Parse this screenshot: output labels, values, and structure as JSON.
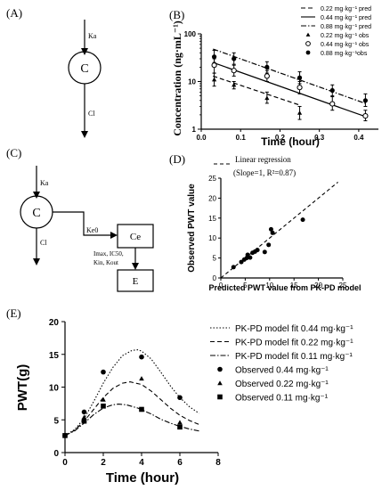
{
  "panels": {
    "A": {
      "label": "(A)",
      "compartment": "C",
      "ka": "Ka",
      "cl": "Cl"
    },
    "C": {
      "label": "(C)",
      "compartment": "C",
      "ka": "Ka",
      "cl": "Cl",
      "ke0": "Ke0",
      "effect_compartment": "Ce",
      "effect": "E",
      "params_line1": "Imax, IC50,",
      "params_line2": "Kin, Kout"
    }
  },
  "chart_data": [
    {
      "panel": "(B)",
      "type": "line",
      "ylabel": "Concentration (ng·mL⁻¹)",
      "xlabel": "Time (hour)",
      "yscale": "log",
      "ylim": [
        1,
        100
      ],
      "xlim": [
        0,
        0.45
      ],
      "x_ticks": [
        "0.0",
        "0.1",
        "0.2",
        "0.3",
        "0.4"
      ],
      "x_tick_values": [
        0,
        0.1,
        0.2,
        0.3,
        0.4
      ],
      "y_ticks": [
        "1",
        "10",
        "100"
      ],
      "y_tick_values": [
        1,
        10,
        100
      ],
      "legend_position": "top-right",
      "pred_series": [
        {
          "name": "0.22 mg·kg⁻¹ pred",
          "style": "dashed",
          "x": [
            0.03,
            0.25
          ],
          "y": [
            13,
            3.2
          ]
        },
        {
          "name": "0.44 mg·kg⁻¹ pred",
          "style": "solid",
          "x": [
            0.03,
            0.42
          ],
          "y": [
            25,
            1.8
          ]
        },
        {
          "name": "0.88 mg·kg⁻¹ pred",
          "style": "dashdot",
          "x": [
            0.03,
            0.42
          ],
          "y": [
            48,
            3.4
          ]
        }
      ],
      "obs_series": [
        {
          "name": "0.22 mg·kg⁻¹ obs",
          "marker": "triangle",
          "x": [
            0.033,
            0.083,
            0.167,
            0.25
          ],
          "y": [
            11,
            8.5,
            4.5,
            2.2
          ],
          "err": [
            [
              8,
              15
            ],
            [
              7,
              10
            ],
            [
              3.5,
              6
            ],
            [
              1.6,
              3
            ]
          ]
        },
        {
          "name": "0.44 mg·kg⁻¹ obs",
          "marker": "open-circle",
          "x": [
            0.033,
            0.083,
            0.167,
            0.25,
            0.333,
            0.417
          ],
          "y": [
            22,
            17,
            13,
            7.5,
            3.4,
            1.9
          ],
          "err": [
            [
              15,
              30
            ],
            [
              13,
              22
            ],
            [
              10,
              17
            ],
            [
              5.5,
              10
            ],
            [
              2.5,
              4.8
            ],
            [
              1.5,
              2.5
            ]
          ]
        },
        {
          "name": "0.88 mg·kg⁻¹obs",
          "marker": "filled-circle",
          "x": [
            0.033,
            0.083,
            0.167,
            0.25,
            0.333,
            0.417
          ],
          "y": [
            33,
            30,
            20,
            12,
            6.5,
            4
          ],
          "err": [
            [
              25,
              45
            ],
            [
              23,
              40
            ],
            [
              15,
              26
            ],
            [
              9,
              16
            ],
            [
              5,
              8.5
            ],
            [
              3,
              5.5
            ]
          ]
        }
      ]
    },
    {
      "panel": "(D)",
      "type": "scatter",
      "xlabel": "Predicted PWT value from PK-PD model",
      "ylabel": "Observed PWT value",
      "xlim": [
        0,
        25
      ],
      "ylim": [
        0,
        25
      ],
      "x_ticks": [
        "0",
        "5",
        "10",
        "15",
        "20",
        "25"
      ],
      "x_tick_values": [
        0,
        5,
        10,
        15,
        20,
        25
      ],
      "y_ticks": [
        "0",
        "5",
        "10",
        "15",
        "20",
        "25"
      ],
      "y_tick_values": [
        0,
        5,
        10,
        15,
        20,
        25
      ],
      "legend_line1": "Linear regression",
      "legend_line2": "(Slope=1, R²=0.87)",
      "regression": {
        "slope": 1,
        "r2": 0.87,
        "x": [
          0,
          24
        ]
      },
      "points": {
        "x": [
          2.6,
          4.2,
          4.8,
          5.3,
          5.5,
          6.0,
          6.5,
          7.0,
          7.5,
          9.0,
          9.8,
          10.3,
          10.6,
          16.8
        ],
        "y": [
          2.7,
          4.0,
          4.6,
          5.0,
          5.8,
          5.1,
          6.3,
          6.6,
          7.0,
          6.5,
          8.3,
          12.2,
          11.3,
          14.6
        ]
      }
    },
    {
      "panel": "(E)",
      "type": "line",
      "xlabel": "Time (hour)",
      "ylabel": "PWT(g)",
      "xlim": [
        0,
        8
      ],
      "ylim": [
        0,
        20
      ],
      "x_ticks": [
        "0",
        "2",
        "4",
        "6",
        "8"
      ],
      "x_tick_values": [
        0,
        2,
        4,
        6,
        8
      ],
      "y_ticks": [
        "0",
        "5",
        "10",
        "15",
        "20"
      ],
      "y_tick_values": [
        0,
        5,
        10,
        15,
        20
      ],
      "legend_position": "top-right",
      "fit_series": [
        {
          "name": "PK-PD model fit 0.44 mg·kg⁻¹",
          "style": "dotted",
          "x": [
            0,
            0.5,
            1,
            1.5,
            2,
            2.5,
            3,
            3.5,
            3.8,
            4,
            4.5,
            5,
            5.5,
            6,
            6.5,
            7
          ],
          "y": [
            2.6,
            3.5,
            5.2,
            7.8,
            10.6,
            13,
            14.8,
            15.6,
            15.7,
            15.5,
            14.3,
            12.3,
            10.2,
            8.4,
            7.0,
            6.0
          ]
        },
        {
          "name": "PK-PD model fit 0.22 mg·kg⁻¹",
          "style": "dashed",
          "x": [
            0,
            0.5,
            1,
            1.5,
            2,
            2.5,
            3,
            3.4,
            4,
            4.5,
            5,
            5.5,
            6,
            6.5,
            7
          ],
          "y": [
            2.6,
            3.4,
            4.8,
            6.6,
            8.4,
            9.8,
            10.6,
            10.8,
            10.4,
            9.4,
            8.1,
            6.8,
            5.7,
            4.9,
            4.3
          ]
        },
        {
          "name": "PK-PD model fit 0.11 mg·kg⁻¹",
          "style": "dashdot",
          "x": [
            0,
            0.5,
            1,
            1.5,
            2,
            2.5,
            2.8,
            3.2,
            3.8,
            4.5,
            5,
            5.5,
            6,
            6.5,
            7
          ],
          "y": [
            2.6,
            3.3,
            4.5,
            5.8,
            6.8,
            7.3,
            7.4,
            7.3,
            6.8,
            5.9,
            5.1,
            4.5,
            4.0,
            3.6,
            3.3
          ]
        }
      ],
      "obs_series": [
        {
          "name": "Observed 0.44 mg·kg⁻¹",
          "marker": "circle",
          "x": [
            0,
            1,
            2,
            4,
            6
          ],
          "y": [
            2.6,
            6.2,
            12.3,
            14.6,
            8.4
          ]
        },
        {
          "name": "Observed 0.22 mg·kg⁻¹",
          "marker": "triangle",
          "x": [
            0,
            1,
            2,
            4,
            6
          ],
          "y": [
            2.6,
            5.4,
            8.1,
            11.3,
            4.6
          ]
        },
        {
          "name": "Observed 0.11 mg·kg⁻¹",
          "marker": "square",
          "x": [
            0,
            1,
            2,
            4,
            6
          ],
          "y": [
            2.6,
            4.8,
            7.1,
            6.6,
            3.9
          ]
        }
      ]
    }
  ]
}
